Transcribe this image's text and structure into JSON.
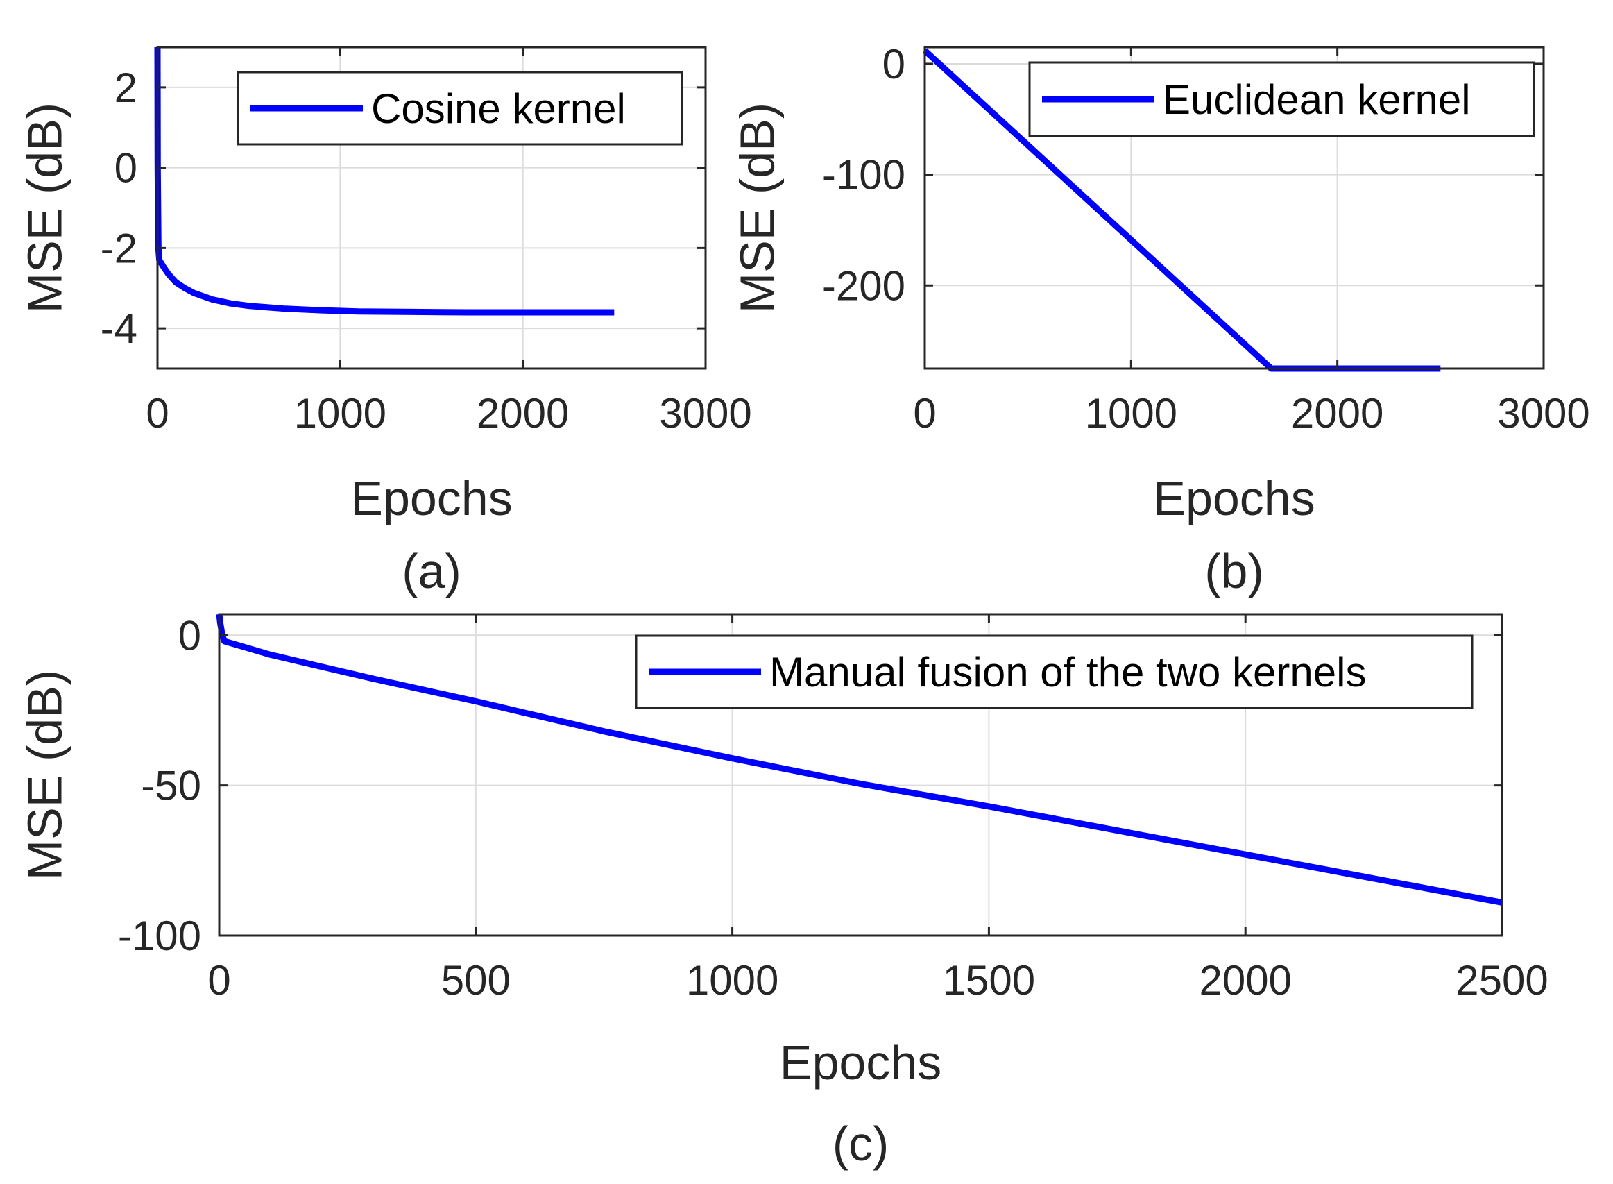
{
  "chart_data": [
    {
      "type": "line",
      "caption": "(a)",
      "xlabel": "Epochs",
      "ylabel": "MSE (dB)",
      "xlim": [
        0,
        3000
      ],
      "ylim": [
        -5,
        3
      ],
      "xticks": [
        0,
        1000,
        2000,
        3000
      ],
      "yticks": [
        2,
        0,
        -2,
        -4
      ],
      "grid": true,
      "legend_position": "top-right",
      "series": [
        {
          "name": "Cosine kernel",
          "color": "#0000ff",
          "x": [
            0,
            1,
            5,
            10,
            30,
            60,
            100,
            150,
            200,
            300,
            400,
            500,
            700,
            900,
            1100,
            1400,
            1700,
            2000,
            2300,
            2500
          ],
          "y": [
            3.0,
            0.0,
            -2.0,
            -2.3,
            -2.45,
            -2.65,
            -2.85,
            -3.0,
            -3.12,
            -3.28,
            -3.38,
            -3.44,
            -3.51,
            -3.55,
            -3.58,
            -3.59,
            -3.6,
            -3.6,
            -3.6,
            -3.6
          ]
        }
      ]
    },
    {
      "type": "line",
      "caption": "(b)",
      "xlabel": "Epochs",
      "ylabel": "MSE (dB)",
      "xlim": [
        0,
        3000
      ],
      "ylim": [
        -275,
        15
      ],
      "xticks": [
        0,
        1000,
        2000,
        3000
      ],
      "yticks": [
        0,
        -100,
        -200
      ],
      "grid": true,
      "legend_position": "top-right",
      "series": [
        {
          "name": "Euclidean kernel",
          "color": "#0000ff",
          "x": [
            0,
            1650,
            1680,
            2500
          ],
          "y": [
            12,
            -270,
            -275,
            -275
          ]
        }
      ]
    },
    {
      "type": "line",
      "caption": "(c)",
      "xlabel": "Epochs",
      "ylabel": "MSE (dB)",
      "xlim": [
        0,
        2500
      ],
      "ylim": [
        -100,
        7
      ],
      "xticks": [
        0,
        500,
        1000,
        1500,
        2000,
        2500
      ],
      "yticks": [
        0,
        -50,
        -100
      ],
      "grid": true,
      "legend_position": "top-right",
      "series": [
        {
          "name": "Manual fusion of the two kernels",
          "color": "#0000ff",
          "x": [
            0,
            2,
            5,
            8,
            10,
            50,
            100,
            200,
            300,
            500,
            750,
            1000,
            1250,
            1500,
            1750,
            2000,
            2250,
            2500
          ],
          "y": [
            7,
            4,
            1,
            -1,
            -2,
            -4,
            -6.5,
            -10.5,
            -14.5,
            -22,
            -32,
            -41,
            -49.5,
            -57,
            -65,
            -73,
            -81,
            -89
          ]
        }
      ]
    }
  ]
}
